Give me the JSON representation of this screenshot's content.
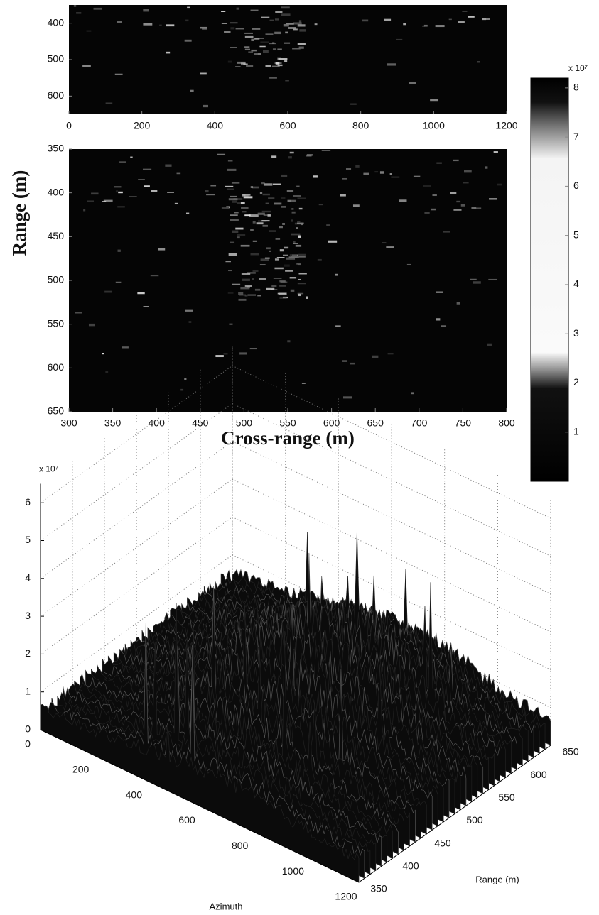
{
  "chart_data": [
    {
      "type": "heatmap",
      "xlim": [
        0,
        1200
      ],
      "xticks": [
        0,
        200,
        400,
        600,
        800,
        1000,
        1200
      ],
      "ylim": [
        350,
        650
      ],
      "yticks": [
        400,
        500,
        600
      ]
    },
    {
      "type": "heatmap",
      "xlim": [
        300,
        800
      ],
      "xticks": [
        300,
        350,
        400,
        450,
        500,
        550,
        600,
        650,
        700,
        750,
        800
      ],
      "ylim": [
        350,
        650
      ],
      "yticks": [
        350,
        400,
        450,
        500,
        550,
        600,
        650
      ],
      "ylabel": "Range (m)",
      "xlabel": "Cross-range (m)",
      "colorbar": {
        "lim": [
          0,
          8.2
        ],
        "ticks": [
          1,
          2,
          3,
          4,
          5,
          6,
          7,
          8
        ],
        "scale_label": "x 10⁷"
      }
    },
    {
      "type": "surface3d",
      "xlim": [
        0,
        1200
      ],
      "xticks": [
        0,
        200,
        400,
        600,
        800,
        1000,
        1200
      ],
      "xlabel": "Azimuth",
      "ylim": [
        350,
        650
      ],
      "yticks": [
        350,
        400,
        450,
        500,
        550,
        600,
        650
      ],
      "ylabel": "Range (m)",
      "zlim": [
        0,
        6.5
      ],
      "zticks": [
        0,
        1,
        2,
        3,
        4,
        5,
        6
      ],
      "zscale_label": "x 10⁷"
    }
  ]
}
